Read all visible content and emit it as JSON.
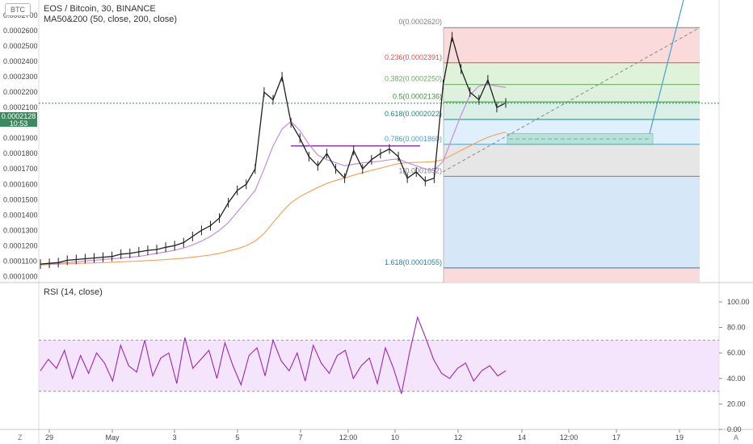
{
  "header": {
    "symbol_badge": "BTC",
    "title": "EOS / Bitcoin, 30, BINANCE",
    "ma_label": "MA50&200 (50, close, 200, close)",
    "rsi_label": "RSI (14, close)",
    "current_price": "0.0002128",
    "countdown": "10:53",
    "corner_left": "Z",
    "corner_right": "A"
  },
  "colors": {
    "candles": "#1f1f1f",
    "ma50": "#c68be0",
    "ma200": "#f4a460",
    "rsi": "#9c27b0",
    "rsi_band": "#f0d9fb",
    "price_line": "#2e8b57",
    "trend_line": "#4aa0c9"
  },
  "chart_data": [
    {
      "type": "line",
      "title": "EOS / Bitcoin, 30, BINANCE",
      "x_ticks": [
        "29",
        "May",
        "3",
        "5",
        "7",
        "12:00",
        "10",
        "12",
        "14",
        "12:00",
        "17",
        "19"
      ],
      "ylim": [
        9.6e-05,
        0.00028
      ],
      "y_ticks": [
        "0.0001000",
        "0.0001100",
        "0.0001200",
        "0.0001300",
        "0.0001400",
        "0.0001500",
        "0.0001600",
        "0.0001700",
        "0.0001800",
        "0.0001900",
        "0.0002000",
        "0.0002100",
        "0.0002200",
        "0.0002300",
        "0.0002400",
        "0.0002500",
        "0.0002600",
        "0.0002700"
      ],
      "series": [
        {
          "name": "EOS / Bitcoin",
          "values": [
            0.000108,
            0.0001085,
            0.000109,
            0.0001105,
            0.000111,
            0.0001115,
            0.000112,
            0.0001125,
            0.000113,
            0.0001145,
            0.000115,
            0.000116,
            0.000117,
            0.0001175,
            0.000119,
            0.00012,
            0.000122,
            0.000126,
            0.00013,
            0.000133,
            0.000138,
            0.000148,
            0.000156,
            0.00016,
            0.00017,
            0.00022,
            0.000215,
            0.00023,
            0.0002,
            0.00019,
            0.000178,
            0.000172,
            0.00018,
            0.00017,
            0.000164,
            0.000182,
            0.00017,
            0.000176,
            0.00018,
            0.000183,
            0.000178,
            0.000164,
            0.000168,
            0.000162,
            0.000164,
            0.000225,
            0.000256,
            0.000235,
            0.00022,
            0.000215,
            0.000228,
            0.00021,
            0.000213
          ]
        },
        {
          "name": "MA50",
          "values": [
            0.000108,
            0.0001082,
            0.0001085,
            0.000109,
            0.0001095,
            0.00011,
            0.0001105,
            0.000111,
            0.0001115,
            0.000112,
            0.0001125,
            0.000113,
            0.000114,
            0.000115,
            0.000116,
            0.000117,
            0.0001185,
            0.0001205,
            0.000123,
            0.000126,
            0.00013,
            0.000135,
            0.000142,
            0.000149,
            0.000156,
            0.00017,
            0.000185,
            0.000196,
            0.000201,
            0.000195,
            0.000186,
            0.000179,
            0.000176,
            0.000174,
            0.000172,
            0.000173,
            0.000174,
            0.0001745,
            0.000175,
            0.000176,
            0.0001765,
            0.000174,
            0.000172,
            0.00017,
            0.000169,
            0.000175,
            0.00019,
            0.000205,
            0.000218,
            0.000224,
            0.000225,
            0.000224,
            0.000223
          ]
        },
        {
          "name": "MA200",
          "values": [
            0.0001075,
            0.0001078,
            0.000108,
            0.0001082,
            0.0001084,
            0.0001086,
            0.0001088,
            0.000109,
            0.0001092,
            0.0001095,
            0.0001098,
            0.00011,
            0.0001103,
            0.0001106,
            0.000111,
            0.0001114,
            0.0001118,
            0.0001125,
            0.0001132,
            0.000114,
            0.000115,
            0.0001165,
            0.000118,
            0.00012,
            0.000123,
            0.000128,
            0.000135,
            0.000142,
            0.000148,
            0.000152,
            0.000155,
            0.000158,
            0.0001605,
            0.0001625,
            0.000164,
            0.000166,
            0.0001675,
            0.000169,
            0.0001705,
            0.000172,
            0.0001735,
            0.000174,
            0.0001742,
            0.0001745,
            0.0001748,
            0.000176,
            0.000179,
            0.000182,
            0.000185,
            0.000188,
            0.0001905,
            0.0001925,
            0.000194
          ]
        }
      ],
      "fibonacci": [
        {
          "label": "0(0.0002620)",
          "value": 0.000262,
          "color": "#808080"
        },
        {
          "label": "0.236(0.0002391)",
          "value": 0.0002391,
          "color": "#e0524f"
        },
        {
          "label": "0.382(0.0002250)",
          "value": 0.000225,
          "color": "#6aaa5e"
        },
        {
          "label": "0.5(0.0002136)",
          "value": 0.0002136,
          "color": "#3e8e41"
        },
        {
          "label": "0.618(0.0002022)",
          "value": 0.0002022,
          "color": "#1a8a7a"
        },
        {
          "label": "0.786(0.0001860)",
          "value": 0.000186,
          "color": "#4aa0c9"
        },
        {
          "label": "1(0.0001652)",
          "value": 0.0001652,
          "color": "#808080"
        },
        {
          "label": "1.618(0.0001055)",
          "value": 0.0001055,
          "color": "#2a7fa8"
        }
      ],
      "current_price": 0.0002128
    },
    {
      "type": "line",
      "title": "RSI (14, close)",
      "ylim": [
        0,
        100
      ],
      "y_ticks": [
        "0.00",
        "20.00",
        "40.00",
        "60.00",
        "80.00",
        "100.00"
      ],
      "band": [
        30,
        70
      ],
      "series": [
        {
          "name": "RSI",
          "values": [
            46,
            55,
            48,
            62,
            40,
            58,
            44,
            60,
            52,
            38,
            66,
            50,
            45,
            70,
            42,
            56,
            60,
            36,
            72,
            48,
            55,
            62,
            40,
            68,
            50,
            35,
            58,
            64,
            42,
            70,
            54,
            46,
            60,
            38,
            66,
            52,
            44,
            58,
            62,
            40,
            50,
            56,
            36,
            64,
            48,
            28,
            60,
            88,
            72,
            55,
            44,
            40,
            48,
            52,
            38,
            46,
            50,
            42,
            46
          ]
        }
      ]
    }
  ]
}
